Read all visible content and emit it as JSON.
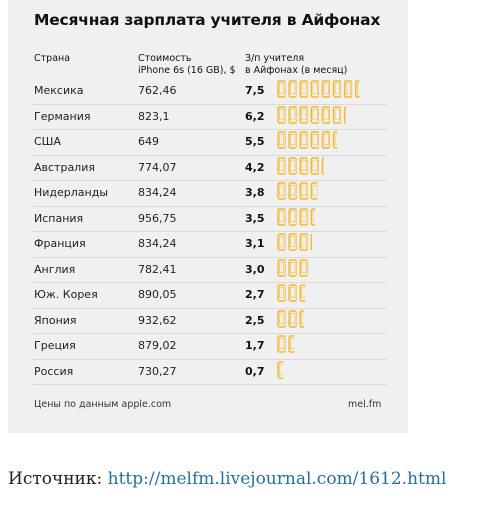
{
  "chart_data": {
    "type": "table",
    "title": "Месячная зарплата учителя в Айфонах",
    "columns": [
      "Страна",
      "Стоимость iPhone 6s (16 GB), $",
      "З/п учителя в Айфонах (в месяц)"
    ],
    "rows": [
      {
        "country": "Мексика",
        "price": "762,46",
        "iphones": "7,5"
      },
      {
        "country": "Германия",
        "price": "823,1",
        "iphones": "6,2"
      },
      {
        "country": "США",
        "price": "649",
        "iphones": "5,5"
      },
      {
        "country": "Австралия",
        "price": "774,07",
        "iphones": "4,2"
      },
      {
        "country": "Нидерланды",
        "price": "834,24",
        "iphones": "3,8"
      },
      {
        "country": "Испания",
        "price": "956,75",
        "iphones": "3,5"
      },
      {
        "country": "Франция",
        "price": "834,24",
        "iphones": "3,1"
      },
      {
        "country": "Англия",
        "price": "782,41",
        "iphones": "3,0"
      },
      {
        "country": "Юж. Корея",
        "price": "890,05",
        "iphones": "2,7"
      },
      {
        "country": "Япония",
        "price": "932,62",
        "iphones": "2,5"
      },
      {
        "country": "Греция",
        "price": "879,02",
        "iphones": "1,7"
      },
      {
        "country": "Россия",
        "price": "730,27",
        "iphones": "0,7"
      }
    ],
    "footnote": "Цены по данным apple.com",
    "credit": "mel.fm",
    "colors": {
      "icon": "#f5b82e"
    }
  },
  "source": {
    "label": "Источник:",
    "url": "http://melfm.livejournal.com/1612.html"
  }
}
